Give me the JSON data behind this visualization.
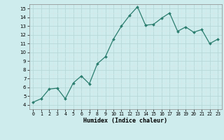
{
  "x": [
    0,
    1,
    2,
    3,
    4,
    5,
    6,
    7,
    8,
    9,
    10,
    11,
    12,
    13,
    14,
    15,
    16,
    17,
    18,
    19,
    20,
    21,
    22,
    23
  ],
  "y": [
    4.3,
    4.7,
    5.8,
    5.9,
    4.7,
    6.5,
    7.3,
    6.4,
    8.7,
    9.5,
    11.5,
    13.0,
    14.2,
    15.2,
    13.1,
    13.2,
    13.9,
    14.5,
    12.4,
    12.9,
    12.3,
    12.6,
    11.0,
    11.5
  ],
  "xlabel": "Humidex (Indice chaleur)",
  "line_color": "#2a7d6e",
  "marker_color": "#2a7d6e",
  "bg_color": "#ceeced",
  "grid_major_color": "#b8d8d8",
  "grid_minor_color": "#d4e8e8",
  "xlim": [
    -0.5,
    23.5
  ],
  "ylim": [
    3.5,
    15.5
  ],
  "yticks": [
    4,
    5,
    6,
    7,
    8,
    9,
    10,
    11,
    12,
    13,
    14,
    15
  ],
  "xticks": [
    0,
    1,
    2,
    3,
    4,
    5,
    6,
    7,
    8,
    9,
    10,
    11,
    12,
    13,
    14,
    15,
    16,
    17,
    18,
    19,
    20,
    21,
    22,
    23
  ]
}
